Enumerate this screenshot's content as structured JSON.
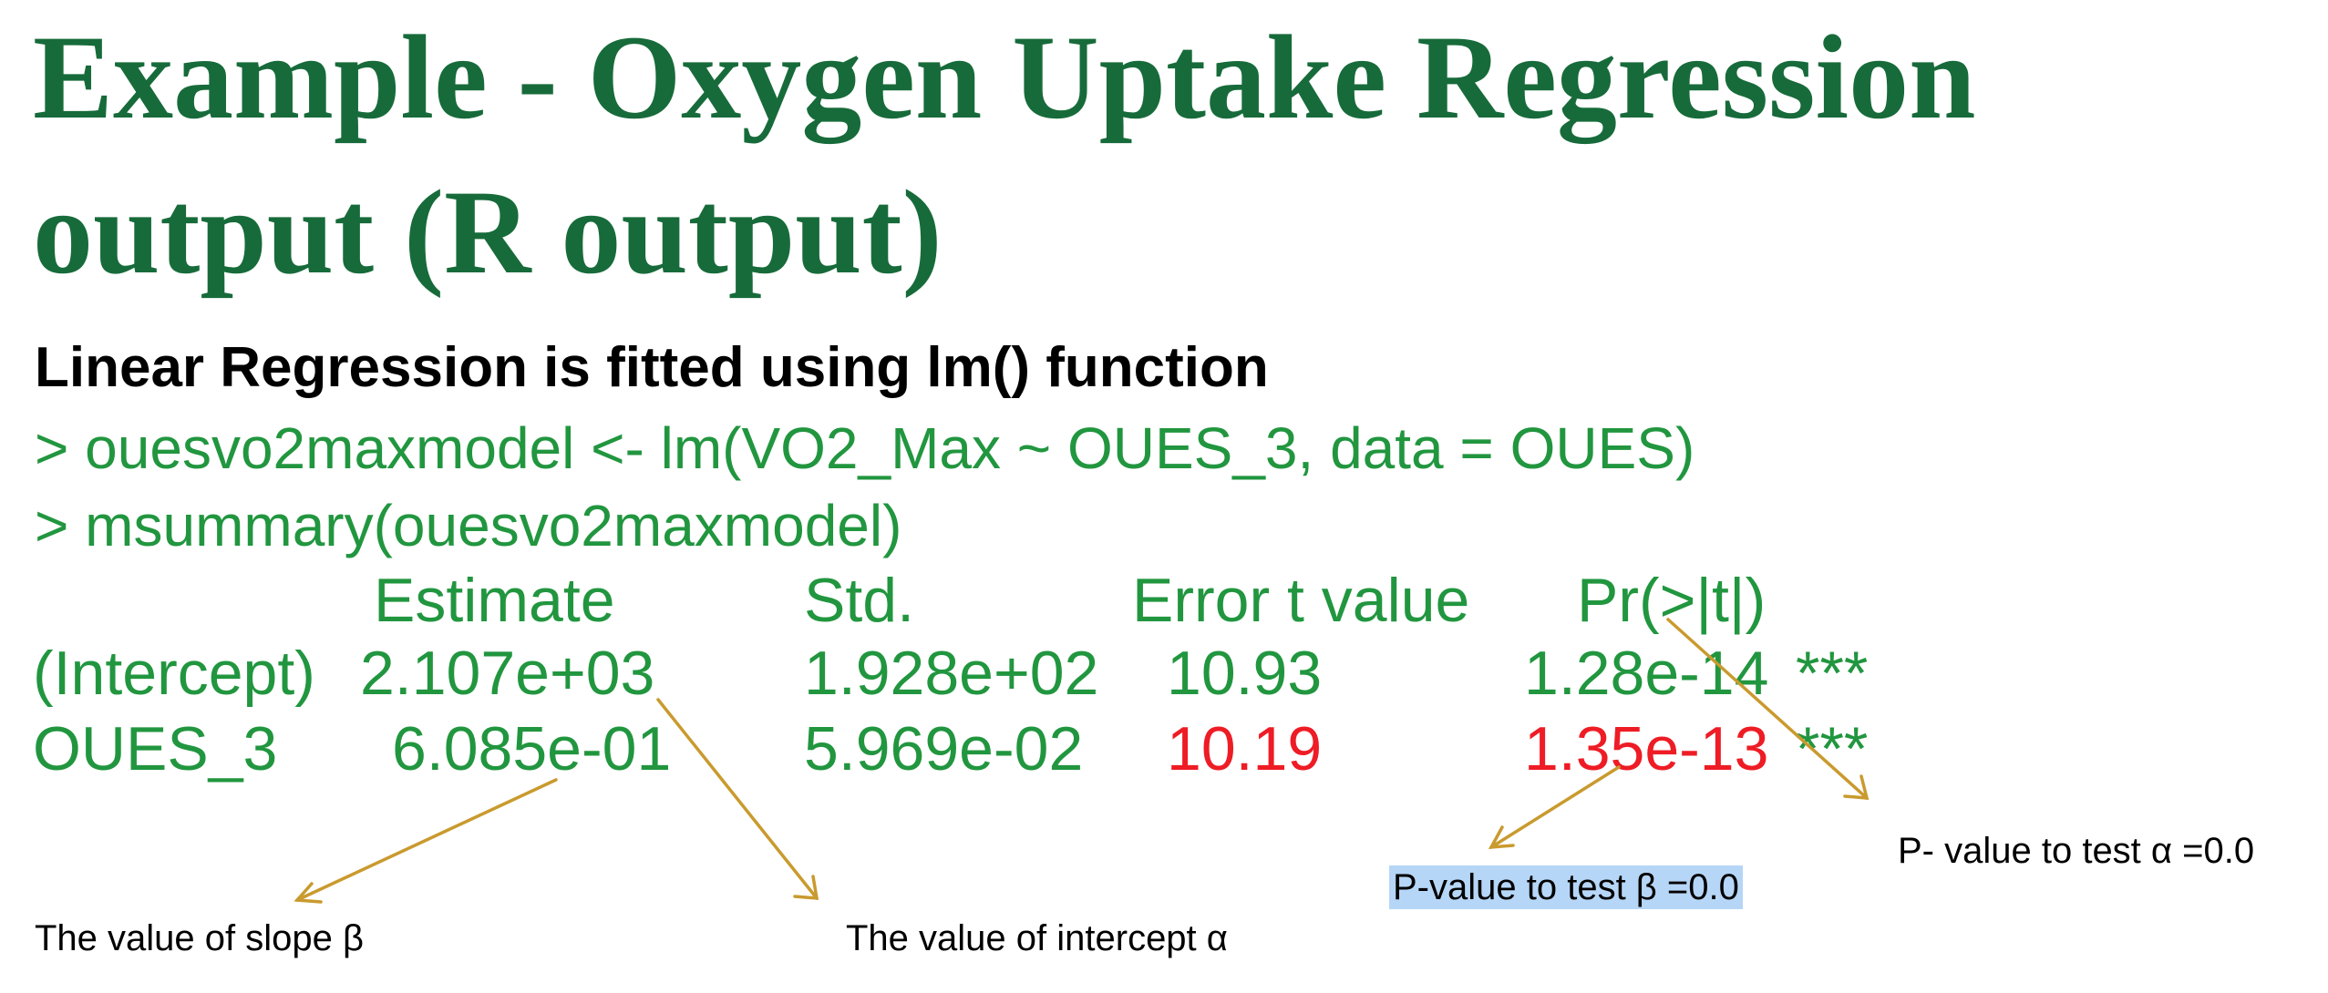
{
  "title": "Example - Oxygen Uptake Regression output (R output)",
  "subtitle": "Linear Regression is fitted using lm() function",
  "code": [
    "> ouesvo2maxmodel <- lm(VO2_Max ~ OUES_3, data = OUES)",
    "> msummary(ouesvo2maxmodel)"
  ],
  "table": {
    "headers": [
      "Estimate",
      "Std.",
      "Error t value",
      "Pr(>|t|)"
    ],
    "rows": [
      {
        "name": "(Intercept)",
        "estimate": "2.107e+03",
        "std_error": "1.928e+02",
        "t_value": "10.93",
        "p_value": "1.28e-14",
        "signif": "***"
      },
      {
        "name": "OUES_3",
        "estimate": "6.085e-01",
        "std_error": "5.969e-02",
        "t_value": "10.19",
        "p_value": "1.35e-13",
        "signif": "***"
      }
    ]
  },
  "annotations": {
    "slope": "The value of slope β",
    "intercept": "The value of  intercept α",
    "p_beta": "P-value to test β =0.0",
    "p_alpha": "P- value to test α =0.0"
  },
  "colors": {
    "title": "#176b3a",
    "code": "#21963f",
    "highlight_red": "#ee1c25",
    "arrow": "#c99a2e",
    "note_highlight": "#b6d6f7"
  }
}
